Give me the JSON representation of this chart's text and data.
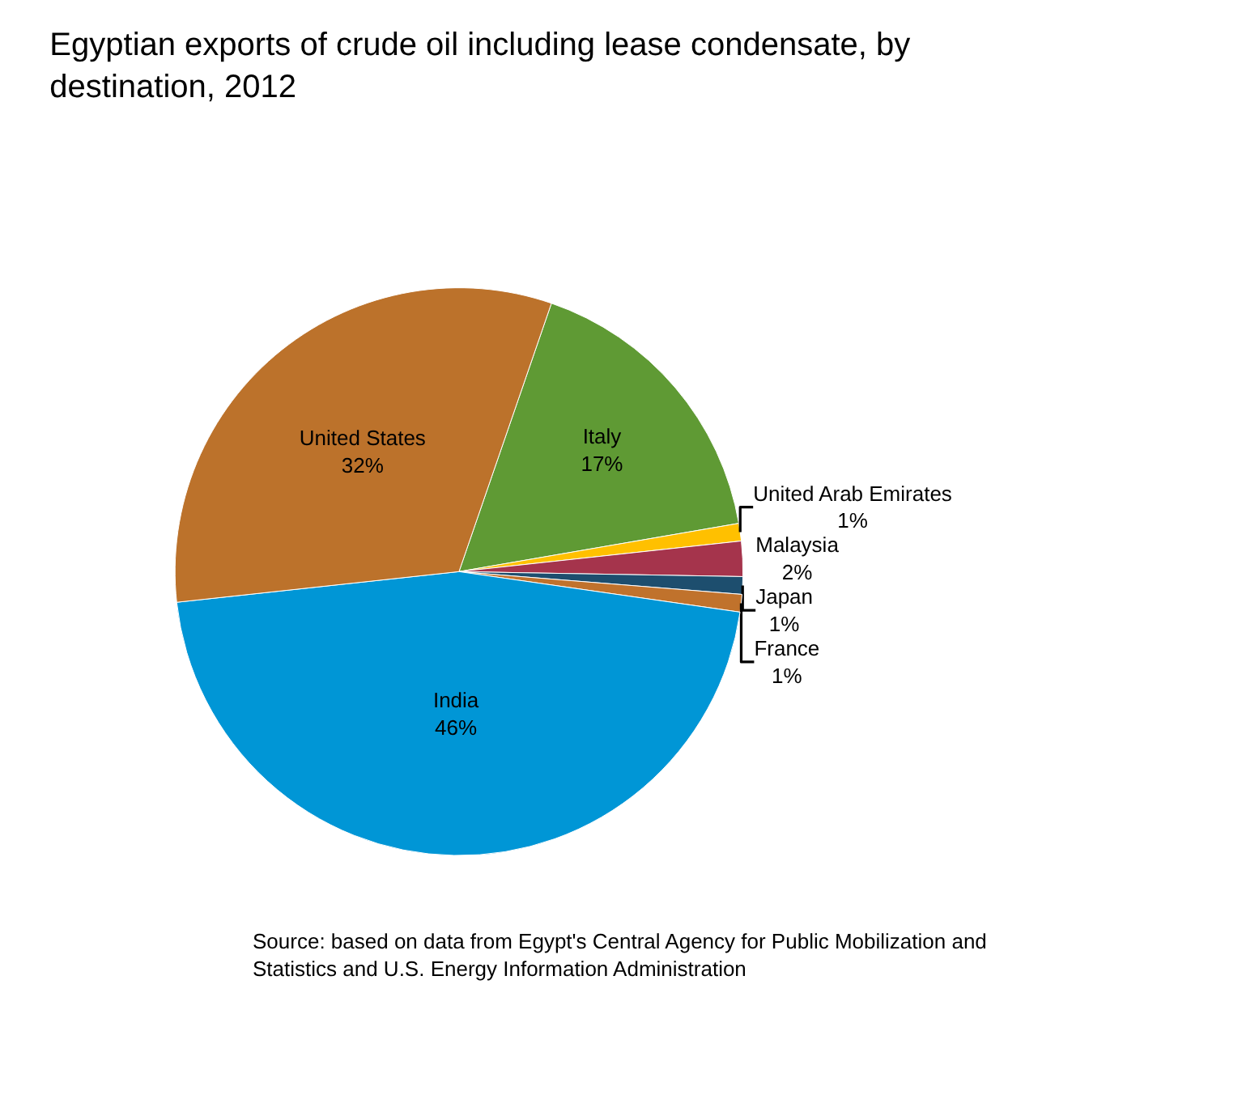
{
  "chart_data": {
    "type": "pie",
    "title": "Egyptian exports of crude oil including lease condensate, by destination, 2012",
    "categories": [
      "Italy",
      "United Arab Emirates",
      "Malaysia",
      "Japan",
      "France",
      "India",
      "United States"
    ],
    "values": [
      17,
      1,
      2,
      1,
      1,
      46,
      32
    ],
    "value_labels": [
      "17%",
      "1%",
      "2%",
      "1%",
      "1%",
      "46%",
      "32%"
    ],
    "colors": [
      "#5f9a34",
      "#ffc000",
      "#a5344c",
      "#1d4e6e",
      "#c0722c",
      "#0096d6",
      "#bc722b"
    ],
    "legend": false,
    "annotations": [
      "Source: based on data from Egypt's Central Agency for Public Mobilization and Statistics and U.S. Energy Information Administration"
    ]
  }
}
